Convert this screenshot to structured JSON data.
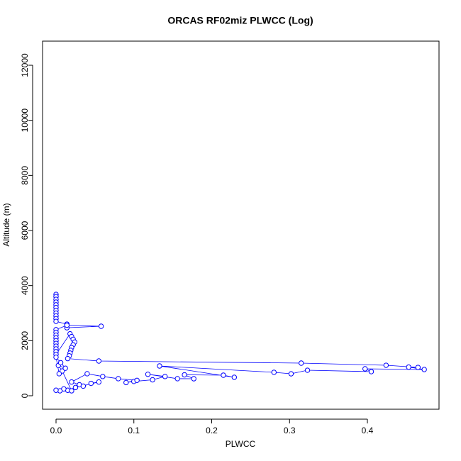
{
  "chart_data": {
    "type": "scatter",
    "title": "ORCAS RF02miz PLWCC (Log)",
    "x_label": "PLWCC",
    "y_label": "Altitude (m)",
    "color": "#0000ff",
    "connect": true,
    "xlim": [
      -0.0173,
      0.492
    ],
    "ylim": [
      -489,
      12876
    ],
    "xticks": [
      {
        "value": 0,
        "label": "0.0"
      },
      0.1,
      0.2,
      0.3,
      0.4
    ],
    "yticks": [
      0,
      2000,
      4000,
      6000,
      8000,
      10000,
      12000
    ],
    "x": [
      0,
      0,
      0,
      0,
      0,
      0,
      0,
      0,
      0,
      0,
      0,
      0.014,
      0.014,
      0.058,
      0.014,
      0,
      0,
      0,
      0,
      0,
      0,
      0,
      0,
      0,
      0,
      0.018,
      0.02,
      0.022,
      0.024,
      0.022,
      0.02,
      0.019,
      0.018,
      0.017,
      0.015,
      0.055,
      0.315,
      0.424,
      0.465,
      0.453,
      0.473,
      0.397,
      0.405,
      0.323,
      0.302,
      0.28,
      0.133,
      0.229,
      0.215,
      0.165,
      0.177,
      0.156,
      0.118,
      0.14,
      0.124,
      0.1,
      0.09,
      0.104,
      0.08,
      0.06,
      0.04,
      0.02,
      0.03,
      0.035,
      0.045,
      0.055,
      0.025,
      0.015,
      0.005,
      0,
      0.01,
      0.02,
      0.008,
      0.003,
      0.012,
      0.006,
      0,
      0.004
    ],
    "y": [
      3680,
      3600,
      3500,
      3400,
      3300,
      3200,
      3100,
      3000,
      2900,
      2800,
      2700,
      2600,
      2470,
      2524,
      2560,
      2400,
      2300,
      2200,
      2100,
      2000,
      1900,
      1800,
      1700,
      1600,
      1500,
      2250,
      2150,
      2050,
      1950,
      1850,
      1750,
      1650,
      1550,
      1450,
      1350,
      1262,
      1185,
      1107,
      1030,
      1040,
      953,
      979,
      876,
      927,
      798,
      850,
      1082,
      670,
      747,
      760,
      618,
      620,
      780,
      700,
      580,
      520,
      480,
      560,
      620,
      700,
      800,
      500,
      400,
      350,
      450,
      500,
      300,
      200,
      180,
      200,
      250,
      180,
      900,
      1100,
      1000,
      1200,
      1400,
      800
    ]
  }
}
